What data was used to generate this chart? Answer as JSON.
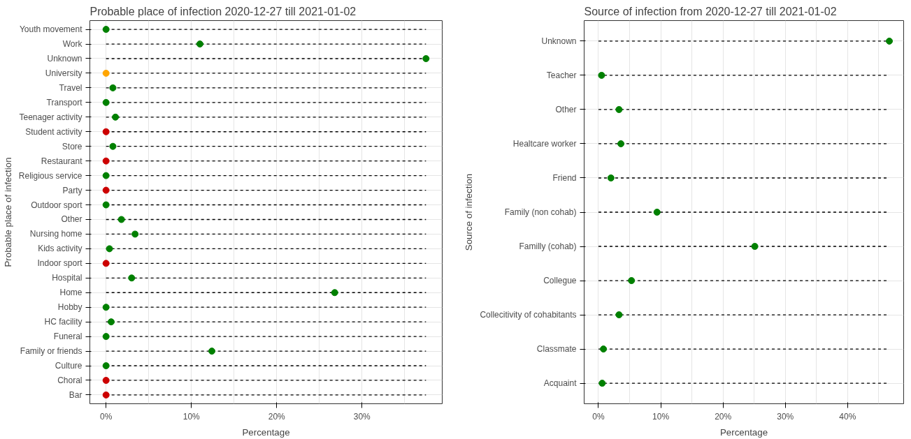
{
  "chart_data": [
    {
      "type": "lollipop",
      "title": "Probable place of infection 2020-12-27 till 2021-01-02",
      "xlabel": "Percentage",
      "ylabel": "Probable place of infection",
      "orientation": "horizontal",
      "line_style": "dashed",
      "marker": "circle",
      "grid": true,
      "categories": [
        "Youth movement",
        "Work",
        "Unknown",
        "University",
        "Travel",
        "Transport",
        "Teenager activity",
        "Student activity",
        "Store",
        "Restaurant",
        "Religious service",
        "Party",
        "Outdoor sport",
        "Other",
        "Nursing home",
        "Kids activity",
        "Indoor sport",
        "Hospital",
        "Home",
        "Hobby",
        "HC facility",
        "Funeral",
        "Family or friends",
        "Culture",
        "Choral",
        "Bar"
      ],
      "values": [
        0,
        11.0,
        37.5,
        0,
        0.8,
        0,
        1.1,
        0,
        0.8,
        0,
        0,
        0,
        0,
        1.8,
        3.4,
        0.4,
        0,
        3.0,
        26.8,
        0,
        0.6,
        0,
        12.4,
        0,
        0,
        0
      ],
      "colors": [
        "#008000",
        "#008000",
        "#008000",
        "#ffa500",
        "#008000",
        "#008000",
        "#008000",
        "#cc0000",
        "#008000",
        "#cc0000",
        "#008000",
        "#cc0000",
        "#008000",
        "#008000",
        "#008000",
        "#008000",
        "#cc0000",
        "#008000",
        "#008000",
        "#008000",
        "#008000",
        "#008000",
        "#008000",
        "#008000",
        "#cc0000",
        "#cc0000"
      ],
      "xlim": [
        -1.9,
        39.4
      ],
      "xticks": [
        {
          "value": 0,
          "label": "0%"
        },
        {
          "value": 5,
          "label": null
        },
        {
          "value": 10,
          "label": "10%"
        },
        {
          "value": 15,
          "label": null
        },
        {
          "value": 20,
          "label": "20%"
        },
        {
          "value": 25,
          "label": null
        },
        {
          "value": 30,
          "label": "30%"
        },
        {
          "value": 35,
          "label": null
        }
      ]
    },
    {
      "type": "lollipop",
      "title": "Source of infection from 2020-12-27 till 2021-01-02",
      "xlabel": "Percentage",
      "ylabel": "Source of infection",
      "orientation": "horizontal",
      "line_style": "dashed",
      "marker": "circle",
      "grid": true,
      "categories": [
        "Unknown",
        "Teacher",
        "Other",
        "Healtcare worker",
        "Friend",
        "Family (non cohab)",
        "Familly (cohab)",
        "Collegue",
        "Collecitivity of cohabitants",
        "Classmate",
        "Acquaint"
      ],
      "values": [
        46.7,
        0.5,
        3.3,
        3.6,
        2.0,
        9.4,
        25.1,
        5.3,
        3.3,
        0.8,
        0.6
      ],
      "colors": [
        "#008000",
        "#008000",
        "#008000",
        "#008000",
        "#008000",
        "#008000",
        "#008000",
        "#008000",
        "#008000",
        "#008000",
        "#008000"
      ],
      "xlim": [
        -2.3,
        49.0
      ],
      "xticks": [
        {
          "value": 0,
          "label": "0%"
        },
        {
          "value": 5,
          "label": null
        },
        {
          "value": 10,
          "label": "10%"
        },
        {
          "value": 15,
          "label": null
        },
        {
          "value": 20,
          "label": "20%"
        },
        {
          "value": 25,
          "label": null
        },
        {
          "value": 30,
          "label": "30%"
        },
        {
          "value": 35,
          "label": null
        },
        {
          "value": 40,
          "label": "40%"
        },
        {
          "value": 45,
          "label": null
        }
      ]
    }
  ]
}
